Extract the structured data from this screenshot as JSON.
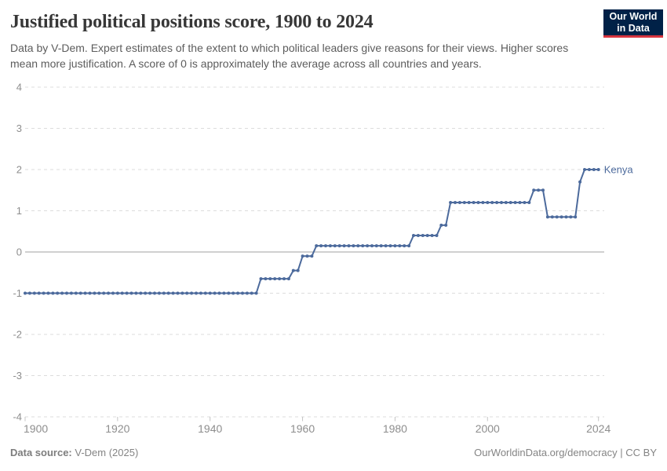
{
  "header": {
    "title": "Justified political positions score, 1900 to 2024",
    "subtitle": "Data by V-Dem. Expert estimates of the extent to which political leaders give reasons for their views. Higher scores mean more justification. A score of 0 is approximately the average across all countries and years.",
    "logo": {
      "line1": "Our World",
      "line2": "in Data",
      "bg_color": "#002147",
      "accent_color": "#D8353F"
    }
  },
  "footer": {
    "source_label": "Data source:",
    "source_value": " V-Dem (2025)",
    "credit": "OurWorldinData.org/democracy | CC BY"
  },
  "chart_data": {
    "type": "line",
    "title": "Justified political positions score, 1900 to 2024",
    "xlabel": "",
    "ylabel": "",
    "xlim": [
      1900,
      2024
    ],
    "ylim": [
      -4,
      4
    ],
    "yticks": [
      4,
      3,
      2,
      1,
      0,
      -1,
      -2,
      -3,
      -4
    ],
    "xticks": [
      1900,
      1920,
      1940,
      1960,
      1980,
      2000,
      2024
    ],
    "grid": "horizontal-dashed",
    "zero_line": true,
    "legend_position": "end-of-line-label",
    "colors": {
      "line": "#4C6A9C",
      "grid": "#dcdcdc",
      "zero_line": "#a0a0a0",
      "tick": "#c4c4c4",
      "axis_label": "#8e8e8e"
    },
    "series": [
      {
        "name": "Kenya",
        "color": "#4C6A9C",
        "start_year": 1900,
        "end_year": 2024,
        "values": [
          -1,
          -1,
          -1,
          -1,
          -1,
          -1,
          -1,
          -1,
          -1,
          -1,
          -1,
          -1,
          -1,
          -1,
          -1,
          -1,
          -1,
          -1,
          -1,
          -1,
          -1,
          -1,
          -1,
          -1,
          -1,
          -1,
          -1,
          -1,
          -1,
          -1,
          -1,
          -1,
          -1,
          -1,
          -1,
          -1,
          -1,
          -1,
          -1,
          -1,
          -1,
          -1,
          -1,
          -1,
          -1,
          -1,
          -1,
          -1,
          -1,
          -1,
          -1,
          -0.65,
          -0.65,
          -0.65,
          -0.65,
          -0.65,
          -0.65,
          -0.65,
          -0.45,
          -0.45,
          -0.1,
          -0.1,
          -0.1,
          0.15,
          0.15,
          0.15,
          0.15,
          0.15,
          0.15,
          0.15,
          0.15,
          0.15,
          0.15,
          0.15,
          0.15,
          0.15,
          0.15,
          0.15,
          0.15,
          0.15,
          0.15,
          0.15,
          0.15,
          0.15,
          0.4,
          0.4,
          0.4,
          0.4,
          0.4,
          0.4,
          0.65,
          0.65,
          1.2,
          1.2,
          1.2,
          1.2,
          1.2,
          1.2,
          1.2,
          1.2,
          1.2,
          1.2,
          1.2,
          1.2,
          1.2,
          1.2,
          1.2,
          1.2,
          1.2,
          1.2,
          1.5,
          1.5,
          1.5,
          0.85,
          0.85,
          0.85,
          0.85,
          0.85,
          0.85,
          0.85,
          1.7,
          2,
          2,
          2,
          2
        ]
      }
    ]
  }
}
